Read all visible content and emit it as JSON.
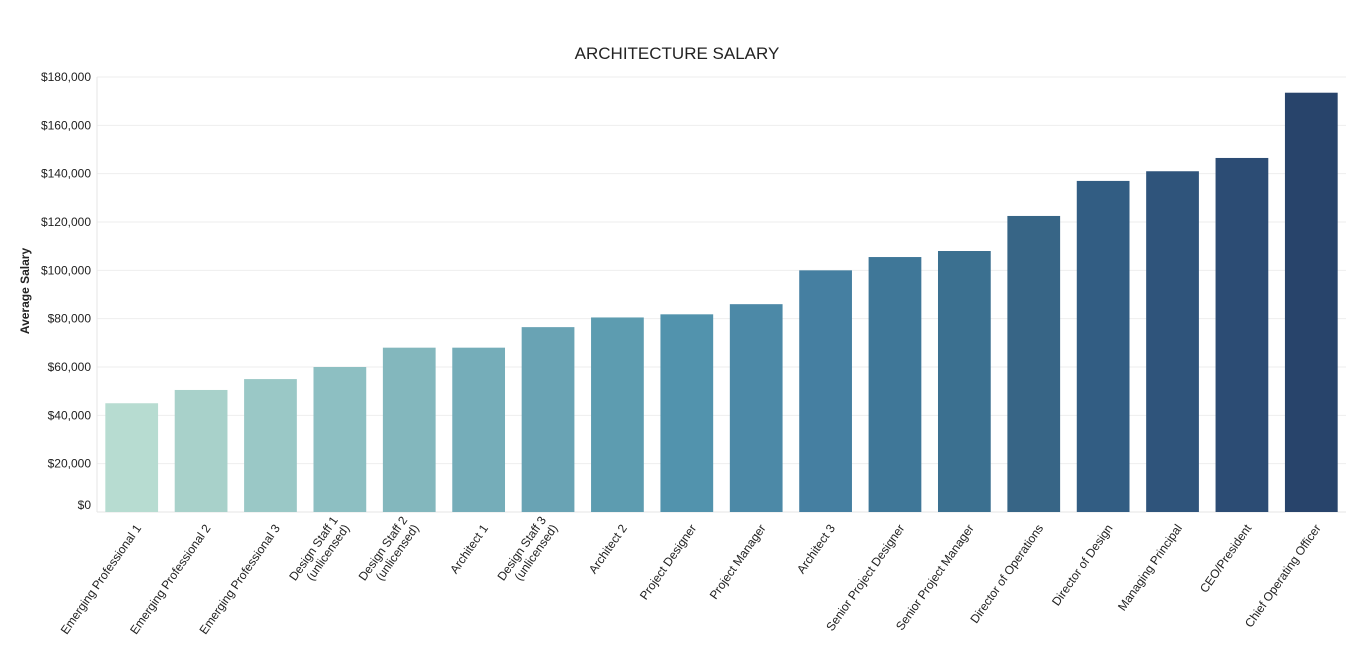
{
  "chart_data": {
    "type": "bar",
    "title": "ARCHITECTURE SALARY",
    "xlabel": "",
    "ylabel": "Average Salary",
    "ylim": [
      0,
      180000
    ],
    "yticks": [
      0,
      20000,
      40000,
      60000,
      80000,
      100000,
      120000,
      140000,
      160000,
      180000
    ],
    "ytick_labels": [
      "$0",
      "$20,000",
      "$40,000",
      "$60,000",
      "$80,000",
      "$100,000",
      "$120,000",
      "$140,000",
      "$160,000",
      "$180,000"
    ],
    "grid": true,
    "legend": "none",
    "categories": [
      "Emerging Professional 1",
      "Emerging Professional 2",
      "Emerging Professional 3",
      "Design Staff 1 (unlicensed)",
      "Design Staff 2 (unlicensed)",
      "Architect 1",
      "Design Staff 3 (unlicensed)",
      "Architect 2",
      "Project Designer",
      "Project Manager",
      "Architect 3",
      "Senior Project Designer",
      "Senior Project Manager",
      "Director of Operations",
      "Director of Design",
      "Managing Principal",
      "CEO/President",
      "Chief Operating Officer"
    ],
    "category_lines": [
      [
        "Emerging Professional 1"
      ],
      [
        "Emerging Professional 2"
      ],
      [
        "Emerging Professional 3"
      ],
      [
        "Design Staff 1",
        "(unlicensed)"
      ],
      [
        "Design Staff 2",
        "(unlicensed)"
      ],
      [
        "Architect 1"
      ],
      [
        "Design Staff 3",
        "(unlicensed)"
      ],
      [
        "Architect 2"
      ],
      [
        "Project Designer"
      ],
      [
        "Project Manager"
      ],
      [
        "Architect 3"
      ],
      [
        "Senior Project Designer"
      ],
      [
        "Senior Project Manager"
      ],
      [
        "Director of Operations"
      ],
      [
        "Director of Design"
      ],
      [
        "Managing Principal"
      ],
      [
        "CEO/President"
      ],
      [
        "Chief Operating Officer"
      ]
    ],
    "values": [
      45000,
      50500,
      55000,
      60000,
      68000,
      68000,
      76500,
      80500,
      81800,
      86000,
      100000,
      105500,
      108000,
      122500,
      137000,
      141000,
      146500,
      173500
    ],
    "colors": [
      "#b7dcd1",
      "#a8d1ca",
      "#9ac8c6",
      "#8dbfc2",
      "#83b7bd",
      "#75adb9",
      "#69a3b4",
      "#5d9cb0",
      "#5293ad",
      "#4c89a7",
      "#457fa1",
      "#3f7798",
      "#3b7090",
      "#376586",
      "#325d83",
      "#2f547b",
      "#2c4c74",
      "#28446b"
    ]
  }
}
